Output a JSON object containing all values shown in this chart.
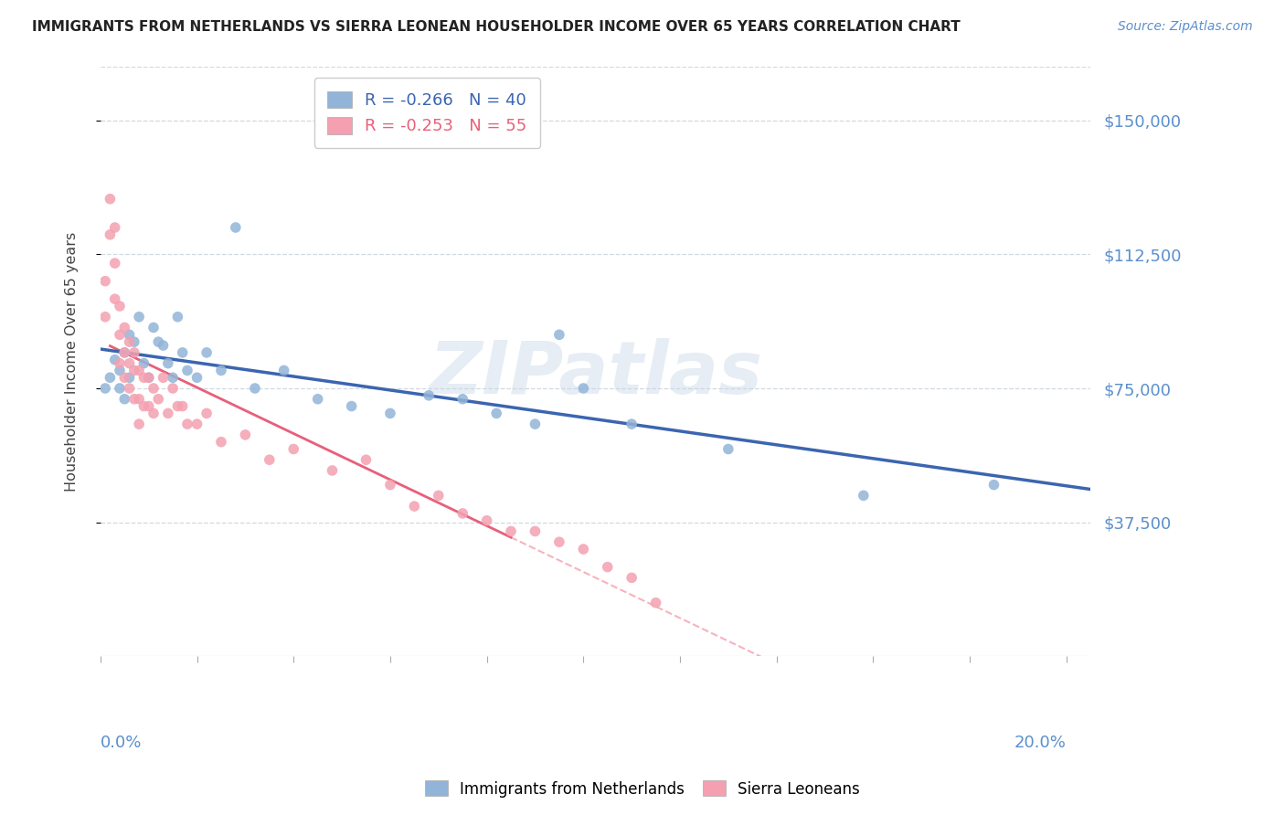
{
  "title": "IMMIGRANTS FROM NETHERLANDS VS SIERRA LEONEAN HOUSEHOLDER INCOME OVER 65 YEARS CORRELATION CHART",
  "source": "Source: ZipAtlas.com",
  "ylabel": "Householder Income Over 65 years",
  "ylim": [
    0,
    165000
  ],
  "xlim": [
    0.0,
    0.205
  ],
  "ytick_vals": [
    37500,
    75000,
    112500,
    150000
  ],
  "ytick_labels": [
    "$37,500",
    "$75,000",
    "$112,500",
    "$150,000"
  ],
  "blue_color": "#92B4D8",
  "pink_color": "#F4A0B0",
  "line_blue_color": "#3B65B0",
  "line_pink_solid_color": "#E8607A",
  "line_pink_dash_color": "#F4A0B0",
  "grid_color": "#D0D8E0",
  "title_color": "#222222",
  "axis_label_color": "#5B8FCC",
  "bg_color": "#FFFFFF",
  "watermark_text": "ZIPatlas",
  "watermark_color": "#C8D8E8",
  "source_color": "#5B8FCC",
  "blue_scatter_x": [
    0.001,
    0.002,
    0.003,
    0.004,
    0.004,
    0.005,
    0.005,
    0.006,
    0.006,
    0.007,
    0.008,
    0.009,
    0.01,
    0.011,
    0.012,
    0.013,
    0.014,
    0.015,
    0.016,
    0.017,
    0.018,
    0.02,
    0.022,
    0.025,
    0.028,
    0.032,
    0.038,
    0.045,
    0.052,
    0.06,
    0.068,
    0.075,
    0.082,
    0.09,
    0.095,
    0.1,
    0.11,
    0.13,
    0.158,
    0.185
  ],
  "blue_scatter_y": [
    75000,
    78000,
    83000,
    80000,
    75000,
    85000,
    72000,
    90000,
    78000,
    88000,
    95000,
    82000,
    78000,
    92000,
    88000,
    87000,
    82000,
    78000,
    95000,
    85000,
    80000,
    78000,
    85000,
    80000,
    120000,
    75000,
    80000,
    72000,
    70000,
    68000,
    73000,
    72000,
    68000,
    65000,
    90000,
    75000,
    65000,
    58000,
    45000,
    48000
  ],
  "pink_scatter_x": [
    0.001,
    0.001,
    0.002,
    0.002,
    0.003,
    0.003,
    0.003,
    0.004,
    0.004,
    0.004,
    0.005,
    0.005,
    0.005,
    0.006,
    0.006,
    0.006,
    0.007,
    0.007,
    0.007,
    0.008,
    0.008,
    0.008,
    0.009,
    0.009,
    0.01,
    0.01,
    0.011,
    0.011,
    0.012,
    0.013,
    0.014,
    0.015,
    0.016,
    0.017,
    0.018,
    0.02,
    0.022,
    0.025,
    0.03,
    0.035,
    0.04,
    0.048,
    0.055,
    0.06,
    0.065,
    0.07,
    0.075,
    0.08,
    0.085,
    0.09,
    0.095,
    0.1,
    0.105,
    0.11,
    0.115
  ],
  "pink_scatter_y": [
    105000,
    95000,
    128000,
    118000,
    120000,
    110000,
    100000,
    98000,
    90000,
    82000,
    92000,
    85000,
    78000,
    88000,
    82000,
    75000,
    85000,
    80000,
    72000,
    80000,
    72000,
    65000,
    78000,
    70000,
    78000,
    70000,
    75000,
    68000,
    72000,
    78000,
    68000,
    75000,
    70000,
    70000,
    65000,
    65000,
    68000,
    60000,
    62000,
    55000,
    58000,
    52000,
    55000,
    48000,
    42000,
    45000,
    40000,
    38000,
    35000,
    35000,
    32000,
    30000,
    25000,
    22000,
    15000
  ],
  "blue_line_x": [
    0.0,
    0.205
  ],
  "pink_solid_line_x": [
    0.002,
    0.085
  ],
  "pink_dash_line_x": [
    0.002,
    0.205
  ],
  "legend_R1": "-0.266",
  "legend_N1": "40",
  "legend_R2": "-0.253",
  "legend_N2": "55"
}
